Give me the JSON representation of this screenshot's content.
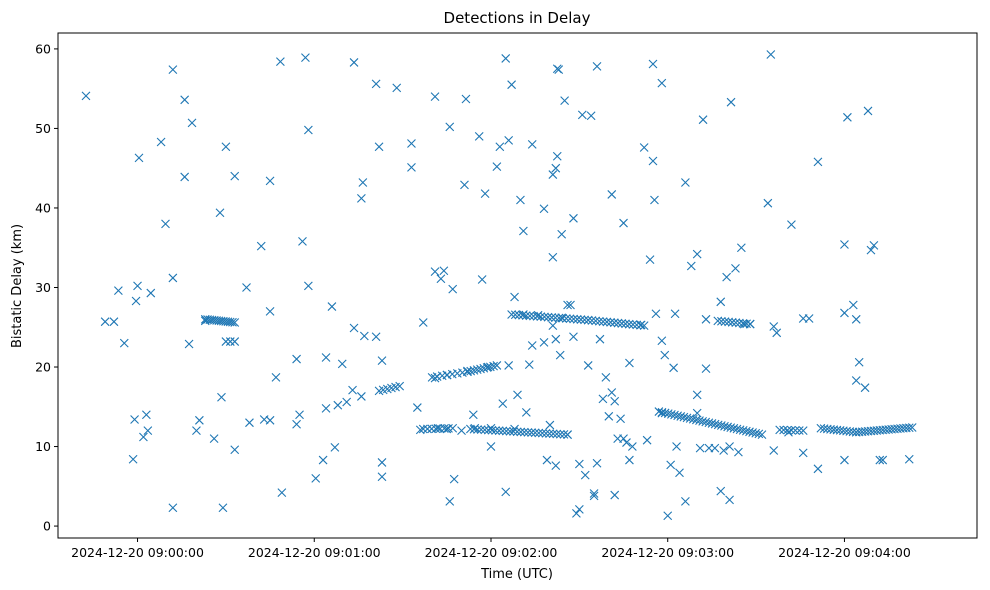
{
  "chart_data": {
    "type": "scatter",
    "title": "Detections in Delay",
    "xlabel": "Time (UTC)",
    "ylabel": "Bistatic Delay (km)",
    "x_unit": "seconds after 2024-12-20 09:00:00",
    "xlim": [
      -27,
      285
    ],
    "ylim": [
      -1.5,
      62
    ],
    "x_ticks": [
      0,
      60,
      120,
      180,
      240
    ],
    "x_tick_labels": [
      "2024-12-20 09:00:00",
      "2024-12-20 09:01:00",
      "2024-12-20 09:02:00",
      "2024-12-20 09:03:00",
      "2024-12-20 09:04:00"
    ],
    "y_ticks": [
      0,
      10,
      20,
      30,
      40,
      50,
      60
    ],
    "y_tick_labels": [
      "0",
      "10",
      "20",
      "30",
      "40",
      "50",
      "60"
    ],
    "marker": "x",
    "color": "#1f77b4",
    "grid": false,
    "legend": "none",
    "series": [
      {
        "name": "detections",
        "points": [
          [
            -17.5,
            54.1
          ],
          [
            -11,
            25.7
          ],
          [
            -8,
            25.7
          ],
          [
            -6.5,
            29.6
          ],
          [
            -4.5,
            23
          ],
          [
            -1.5,
            8.4
          ],
          [
            -1,
            13.4
          ],
          [
            -0.5,
            28.3
          ],
          [
            0,
            30.2
          ],
          [
            0.5,
            46.3
          ],
          [
            2,
            11.2
          ],
          [
            3,
            14
          ],
          [
            3.5,
            12
          ],
          [
            4.5,
            29.3
          ],
          [
            8,
            48.3
          ],
          [
            9.5,
            38
          ],
          [
            12,
            57.4
          ],
          [
            12,
            31.2
          ],
          [
            12,
            2.3
          ],
          [
            16,
            53.6
          ],
          [
            16,
            43.9
          ],
          [
            17.5,
            22.9
          ],
          [
            18.5,
            50.7
          ],
          [
            20,
            12
          ],
          [
            21,
            13.3
          ],
          [
            23,
            25.8
          ],
          [
            26,
            11
          ],
          [
            28,
            39.4
          ],
          [
            29,
            2.3
          ],
          [
            28.5,
            16.2
          ],
          [
            30,
            47.7
          ],
          [
            33,
            9.6
          ],
          [
            33,
            44
          ],
          [
            37,
            30
          ],
          [
            38,
            13
          ],
          [
            42,
            35.2
          ],
          [
            43,
            13.4
          ],
          [
            45,
            13.3
          ],
          [
            45,
            43.4
          ],
          [
            45,
            27
          ],
          [
            47,
            18.7
          ],
          [
            48.5,
            58.4
          ],
          [
            49,
            4.2
          ],
          [
            54,
            21
          ],
          [
            54,
            12.8
          ],
          [
            55,
            14
          ],
          [
            56,
            35.8
          ],
          [
            57,
            58.9
          ],
          [
            58,
            49.8
          ],
          [
            58,
            30.2
          ],
          [
            60.5,
            6
          ],
          [
            63,
            8.3
          ],
          [
            64,
            14.8
          ],
          [
            64,
            21.2
          ],
          [
            66,
            27.6
          ],
          [
            67,
            9.9
          ],
          [
            68,
            15.2
          ],
          [
            69.5,
            20.4
          ],
          [
            71,
            15.6
          ],
          [
            73,
            17.1
          ],
          [
            73.5,
            24.9
          ],
          [
            73.5,
            58.3
          ],
          [
            76,
            16.3
          ],
          [
            76,
            41.2
          ],
          [
            76.5,
            43.2
          ],
          [
            77,
            23.9
          ],
          [
            81,
            23.8
          ],
          [
            81,
            55.6
          ],
          [
            82,
            47.7
          ],
          [
            83,
            8
          ],
          [
            83,
            6.2
          ],
          [
            83,
            20.8
          ],
          [
            88,
            55.1
          ],
          [
            93,
            48.1
          ],
          [
            93,
            45.1
          ],
          [
            95,
            14.9
          ],
          [
            96,
            12.1
          ],
          [
            97,
            25.6
          ],
          [
            101,
            18.6
          ],
          [
            101,
            32
          ],
          [
            101,
            54
          ],
          [
            102,
            12.3
          ],
          [
            103,
            31.1
          ],
          [
            104,
            32.1
          ],
          [
            105,
            12.2
          ],
          [
            105,
            19
          ],
          [
            106,
            50.2
          ],
          [
            107,
            29.8
          ],
          [
            106,
            3.1
          ],
          [
            107.5,
            5.9
          ],
          [
            111,
            42.9
          ],
          [
            110,
            12
          ],
          [
            111.5,
            53.7
          ],
          [
            112,
            19.5
          ],
          [
            114.5,
            12.3
          ],
          [
            114,
            14
          ],
          [
            116,
            49
          ],
          [
            117,
            31
          ],
          [
            118,
            41.8
          ],
          [
            119,
            20
          ],
          [
            120,
            12.3
          ],
          [
            120,
            10
          ],
          [
            122,
            45.2
          ],
          [
            123,
            47.7
          ],
          [
            124,
            15.4
          ],
          [
            125,
            58.8
          ],
          [
            125,
            4.3
          ],
          [
            126,
            48.5
          ],
          [
            126,
            20.2
          ],
          [
            127,
            55.5
          ],
          [
            128,
            28.8
          ],
          [
            128,
            12.2
          ],
          [
            129,
            16.5
          ],
          [
            130,
            41
          ],
          [
            131,
            26.6
          ],
          [
            131,
            37.1
          ],
          [
            132,
            14.3
          ],
          [
            133,
            20.3
          ],
          [
            134,
            48
          ],
          [
            134,
            22.7
          ],
          [
            136,
            26.5
          ],
          [
            138,
            23.1
          ],
          [
            138,
            39.9
          ],
          [
            139,
            8.3
          ],
          [
            140,
            12.7
          ],
          [
            141,
            33.8
          ],
          [
            141,
            25.2
          ],
          [
            141,
            44.2
          ],
          [
            142,
            23.5
          ],
          [
            142,
            7.6
          ],
          [
            142,
            45
          ],
          [
            142.5,
            57.5
          ],
          [
            143,
            57.4
          ],
          [
            142.5,
            46.5
          ],
          [
            143.5,
            21.5
          ],
          [
            144,
            26.2
          ],
          [
            144,
            36.7
          ],
          [
            145,
            53.5
          ],
          [
            146,
            11.5
          ],
          [
            146,
            27.8
          ],
          [
            147,
            27.8
          ],
          [
            148,
            23.8
          ],
          [
            148,
            38.7
          ],
          [
            149,
            1.6
          ],
          [
            150,
            2.1
          ],
          [
            150,
            7.8
          ],
          [
            151,
            51.7
          ],
          [
            152,
            6.4
          ],
          [
            153,
            20.2
          ],
          [
            154,
            51.6
          ],
          [
            155,
            4.1
          ],
          [
            155,
            3.8
          ],
          [
            156,
            57.8
          ],
          [
            156,
            7.9
          ],
          [
            157,
            23.5
          ],
          [
            158,
            16
          ],
          [
            159,
            18.7
          ],
          [
            160,
            13.8
          ],
          [
            161,
            41.7
          ],
          [
            161,
            16.8
          ],
          [
            162,
            15.7
          ],
          [
            162,
            3.9
          ],
          [
            163,
            11
          ],
          [
            164,
            13.5
          ],
          [
            165,
            38.1
          ],
          [
            165,
            11
          ],
          [
            166,
            10.5
          ],
          [
            167,
            20.5
          ],
          [
            167,
            8.3
          ],
          [
            168,
            10
          ],
          [
            171,
            25.3
          ],
          [
            172,
            47.6
          ],
          [
            173,
            10.8
          ],
          [
            174,
            33.5
          ],
          [
            175,
            58.1
          ],
          [
            175,
            45.9
          ],
          [
            175.5,
            41
          ],
          [
            176,
            26.7
          ],
          [
            178,
            23.3
          ],
          [
            179,
            21.5
          ],
          [
            178,
            55.7
          ],
          [
            178,
            14.2
          ],
          [
            180,
            1.3
          ],
          [
            181,
            7.7
          ],
          [
            182,
            19.9
          ],
          [
            183,
            10
          ],
          [
            182.5,
            26.7
          ],
          [
            184,
            6.7
          ],
          [
            186,
            43.2
          ],
          [
            186,
            3.1
          ],
          [
            188,
            32.7
          ],
          [
            190,
            16.5
          ],
          [
            190,
            34.2
          ],
          [
            190,
            14.2
          ],
          [
            191,
            9.8
          ],
          [
            192,
            51.1
          ],
          [
            193,
            26
          ],
          [
            193,
            19.8
          ],
          [
            194,
            9.8
          ],
          [
            196,
            9.8
          ],
          [
            198,
            28.2
          ],
          [
            198,
            4.4
          ],
          [
            199,
            9.5
          ],
          [
            200,
            31.3
          ],
          [
            201,
            3.3
          ],
          [
            201,
            10
          ],
          [
            201.5,
            53.3
          ],
          [
            203,
            32.4
          ],
          [
            204,
            9.3
          ],
          [
            205,
            35
          ],
          [
            206,
            25.4
          ],
          [
            208,
            25.4
          ],
          [
            214,
            40.6
          ],
          [
            215,
            59.3
          ],
          [
            216,
            25.1
          ],
          [
            216,
            9.5
          ],
          [
            217,
            24.3
          ],
          [
            221,
            11.8
          ],
          [
            222,
            37.9
          ],
          [
            226,
            26.1
          ],
          [
            226,
            9.2
          ],
          [
            228,
            26.1
          ],
          [
            231,
            45.8
          ],
          [
            231,
            7.2
          ],
          [
            240,
            35.4
          ],
          [
            240,
            26.8
          ],
          [
            240,
            8.3
          ],
          [
            241,
            51.4
          ],
          [
            243,
            27.8
          ],
          [
            244,
            18.3
          ],
          [
            244,
            26
          ],
          [
            245,
            20.6
          ],
          [
            247,
            17.4
          ],
          [
            248,
            52.2
          ],
          [
            249,
            34.7
          ],
          [
            250,
            35.3
          ],
          [
            252,
            8.3
          ],
          [
            253,
            8.3
          ],
          [
            262,
            8.4
          ]
        ]
      }
    ],
    "tracks": [
      {
        "x_start": 23,
        "x_end": 33,
        "y_start": 26.0,
        "y_end": 25.6,
        "n": 14
      },
      {
        "x_start": 30,
        "x_end": 33,
        "y_start": 23.2,
        "y_end": 23.2,
        "n": 3
      },
      {
        "x_start": 82,
        "x_end": 89,
        "y_start": 17.0,
        "y_end": 17.6,
        "n": 6
      },
      {
        "x_start": 100,
        "x_end": 112,
        "y_start": 18.7,
        "y_end": 19.4,
        "n": 8
      },
      {
        "x_start": 112,
        "x_end": 122,
        "y_start": 19.4,
        "y_end": 20.2,
        "n": 10
      },
      {
        "x_start": 97,
        "x_end": 107,
        "y_start": 12.2,
        "y_end": 12.3,
        "n": 8
      },
      {
        "x_start": 113,
        "x_end": 146,
        "y_start": 12.2,
        "y_end": 11.5,
        "n": 28
      },
      {
        "x_start": 127,
        "x_end": 153,
        "y_start": 26.6,
        "y_end": 25.9,
        "n": 22
      },
      {
        "x_start": 153,
        "x_end": 172,
        "y_start": 25.9,
        "y_end": 25.2,
        "n": 16
      },
      {
        "x_start": 177,
        "x_end": 212,
        "y_start": 14.4,
        "y_end": 11.5,
        "n": 34
      },
      {
        "x_start": 197,
        "x_end": 208,
        "y_start": 25.8,
        "y_end": 25.4,
        "n": 10
      },
      {
        "x_start": 218,
        "x_end": 226,
        "y_start": 12.1,
        "y_end": 12.0,
        "n": 7
      },
      {
        "x_start": 232,
        "x_end": 244,
        "y_start": 12.3,
        "y_end": 11.8,
        "n": 12
      },
      {
        "x_start": 244,
        "x_end": 263,
        "y_start": 11.8,
        "y_end": 12.4,
        "n": 20
      }
    ]
  }
}
